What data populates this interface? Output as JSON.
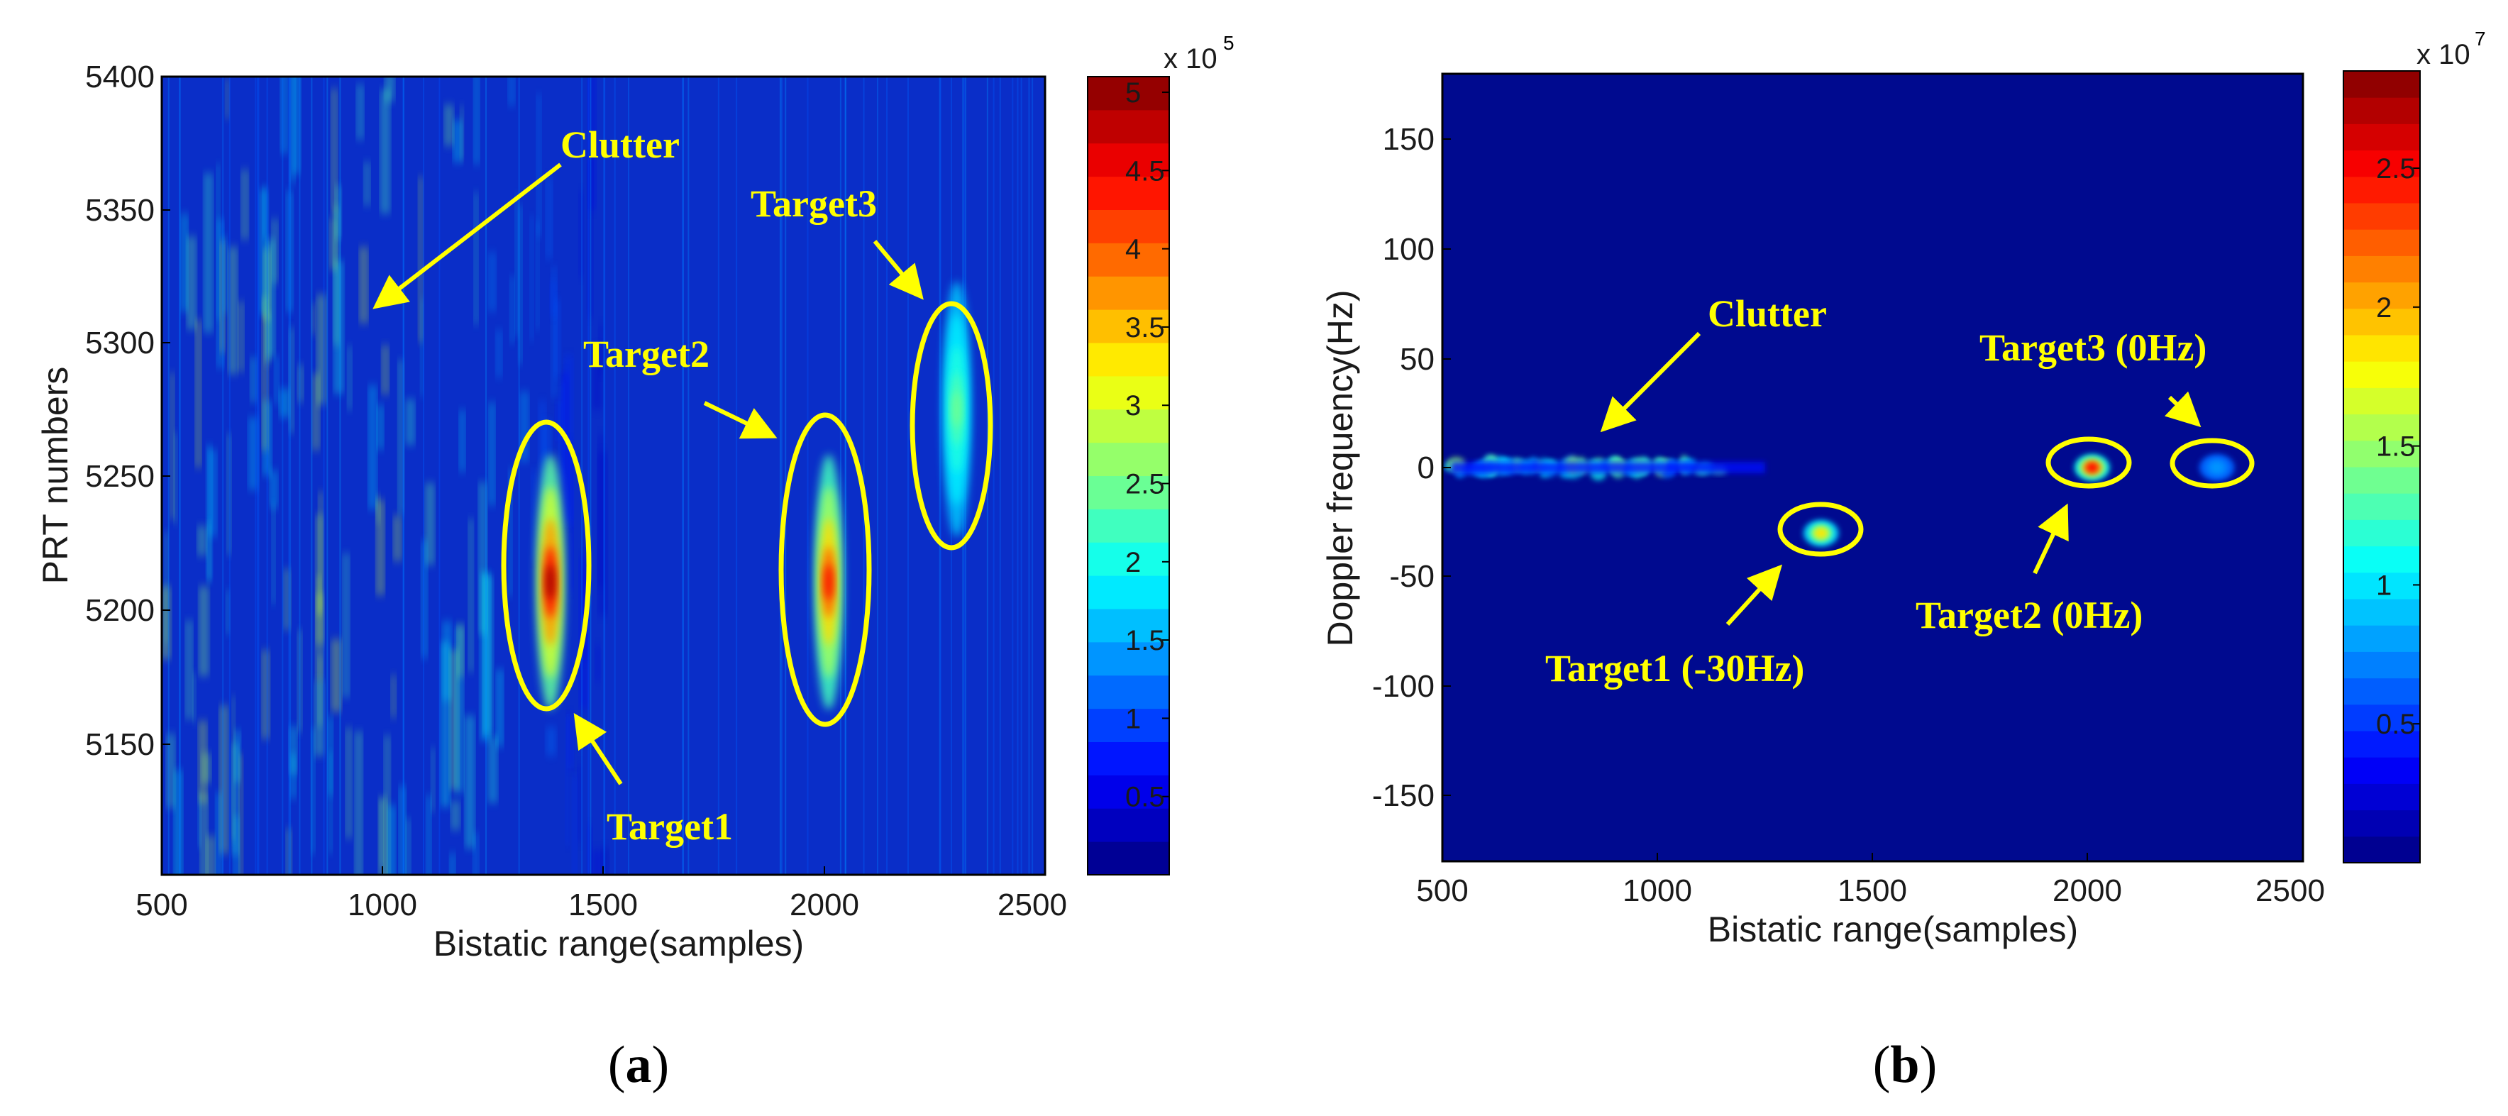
{
  "panels": [
    {
      "id": "a",
      "letter": "a",
      "xlabel": "Bistatic range(samples)",
      "ylabel": "PRT numbers",
      "xticks": [
        "500",
        "1000",
        "1500",
        "2000",
        "2500"
      ],
      "yticks": [
        "5150",
        "5200",
        "5250",
        "5300",
        "5350",
        "5400"
      ],
      "colorbar": {
        "exponent_base": "x 10",
        "exponent": "5",
        "ticks": [
          "0.5",
          "1",
          "1.5",
          "2",
          "2.5",
          "3",
          "3.5",
          "4",
          "4.5",
          "5"
        ]
      },
      "annotations": [
        "Clutter",
        "Target3",
        "Target2",
        "Target1"
      ]
    },
    {
      "id": "b",
      "letter": "b",
      "xlabel": "Bistatic range(samples)",
      "ylabel": "Doppler frequency(Hz)",
      "xticks": [
        "500",
        "1000",
        "1500",
        "2000",
        "2500"
      ],
      "yticks": [
        "150",
        "100",
        "50",
        "0",
        "-50",
        "-100",
        "-150"
      ],
      "colorbar": {
        "exponent_base": "x 10",
        "exponent": "7",
        "ticks": [
          "0.5",
          "1",
          "1.5",
          "2",
          "2.5"
        ]
      },
      "annotations": [
        "Clutter",
        "Target3 (0Hz)",
        "Target2 (0Hz)",
        "Target1 (-30Hz)"
      ]
    }
  ],
  "chart_data": [
    {
      "type": "heatmap",
      "title": "",
      "xlabel": "Bistatic range(samples)",
      "ylabel": "PRT numbers",
      "xlim": [
        500,
        2500
      ],
      "ylim": [
        5100,
        5400
      ],
      "colorbar_range": [
        0,
        510000
      ],
      "colormap": "jet",
      "background_color": "#0a2ec8",
      "targets": [
        {
          "name": "Target1",
          "x": 1380,
          "y": 5210,
          "peak": 500000
        },
        {
          "name": "Target2",
          "x": 2010,
          "y": 5210,
          "peak": 450000
        },
        {
          "name": "Target3",
          "x": 2300,
          "y": 5275,
          "peak": 250000
        }
      ],
      "clutter": {
        "name": "Clutter",
        "x_range": [
          500,
          1300
        ]
      }
    },
    {
      "type": "heatmap",
      "title": "",
      "xlabel": "Bistatic range(samples)",
      "ylabel": "Doppler frequency(Hz)",
      "xlim": [
        500,
        2500
      ],
      "ylim": [
        -180,
        180
      ],
      "colorbar_range": [
        0,
        28500000
      ],
      "colormap": "jet",
      "background_color": "#000a8f",
      "targets": [
        {
          "name": "Target1",
          "x": 1380,
          "y": -30,
          "peak": 20000000
        },
        {
          "name": "Target2",
          "x": 2010,
          "y": 0,
          "peak": 27000000
        },
        {
          "name": "Target3",
          "x": 2300,
          "y": 0,
          "peak": 8000000
        }
      ],
      "clutter": {
        "name": "Clutter",
        "x_range": [
          520,
          1150
        ],
        "y": 0
      }
    }
  ],
  "colors": {
    "annotation": "#ffff00",
    "bg_a": "#0a2ec8",
    "bg_b": "#000a8f"
  }
}
